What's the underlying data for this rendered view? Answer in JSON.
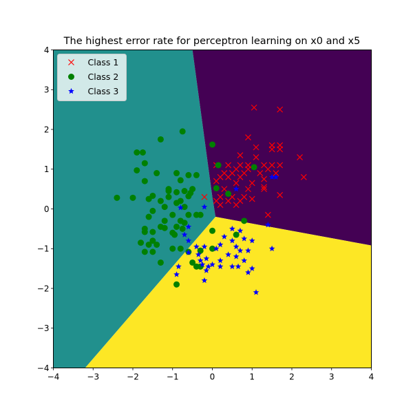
{
  "chart_data": {
    "type": "scatter",
    "title": "The highest error rate for perceptron learning on x0 and x5",
    "xlabel": "",
    "ylabel": "",
    "xlim": [
      -4,
      4
    ],
    "ylim": [
      -4,
      4
    ],
    "xticks": [
      "−4",
      "−3",
      "−2",
      "−1",
      "0",
      "1",
      "2",
      "3",
      "4"
    ],
    "yticks": [
      "−4",
      "−3",
      "−2",
      "−1",
      "0",
      "1",
      "2",
      "3",
      "4"
    ],
    "grid": false,
    "legend_position": "top-left",
    "decision_regions": [
      {
        "color": "#21908d",
        "polygon": [
          [
            -4,
            4
          ],
          [
            -0.5,
            4
          ],
          [
            0,
            0.3
          ],
          [
            0.08,
            -0.2
          ],
          [
            -3.2,
            -4
          ],
          [
            -4,
            -4
          ]
        ]
      },
      {
        "color": "#440154",
        "polygon": [
          [
            -0.5,
            4
          ],
          [
            4,
            4
          ],
          [
            4,
            -0.92
          ],
          [
            0.08,
            -0.2
          ],
          [
            0,
            0.3
          ]
        ]
      },
      {
        "color": "#fde725",
        "polygon": [
          [
            0.08,
            -0.2
          ],
          [
            4,
            -0.92
          ],
          [
            4,
            -4
          ],
          [
            -3.2,
            -4
          ]
        ]
      }
    ],
    "series": [
      {
        "name": "Class 1",
        "marker": "x",
        "color": "#ff0000",
        "points": [
          [
            1.05,
            2.55
          ],
          [
            1.7,
            2.5
          ],
          [
            0.9,
            1.8
          ],
          [
            1.5,
            1.6
          ],
          [
            1.7,
            1.6
          ],
          [
            1.1,
            1.55
          ],
          [
            1.5,
            1.5
          ],
          [
            1.7,
            1.5
          ],
          [
            0.7,
            1.35
          ],
          [
            2.2,
            1.3
          ],
          [
            1.1,
            1.3
          ],
          [
            0.1,
            1.1
          ],
          [
            0.4,
            1.1
          ],
          [
            0.7,
            1.1
          ],
          [
            0.9,
            1.1
          ],
          [
            1.3,
            1.1
          ],
          [
            1.5,
            1.1
          ],
          [
            1.7,
            1.1
          ],
          [
            0.6,
            1.0
          ],
          [
            0.9,
            1.0
          ],
          [
            1.4,
            1.0
          ],
          [
            0.3,
            0.9
          ],
          [
            0.5,
            0.9
          ],
          [
            0.8,
            0.9
          ],
          [
            1.2,
            0.9
          ],
          [
            1.6,
            0.9
          ],
          [
            2.3,
            0.8
          ],
          [
            0.2,
            0.8
          ],
          [
            0.4,
            0.8
          ],
          [
            0.7,
            0.8
          ],
          [
            1.3,
            0.75
          ],
          [
            0.1,
            0.7
          ],
          [
            0.6,
            0.65
          ],
          [
            1.0,
            0.65
          ],
          [
            1.3,
            0.55
          ],
          [
            0.3,
            0.5
          ],
          [
            0.9,
            0.5
          ],
          [
            1.3,
            0.5
          ],
          [
            1.7,
            0.35
          ],
          [
            0.2,
            0.3
          ],
          [
            0.5,
            0.3
          ],
          [
            0.8,
            0.3
          ],
          [
            1.0,
            0.25
          ],
          [
            -0.2,
            0.3
          ],
          [
            0.1,
            0.2
          ],
          [
            0.4,
            0.2
          ],
          [
            0.7,
            0.2
          ],
          [
            0.2,
            0.1
          ],
          [
            0.6,
            0.1
          ],
          [
            1.4,
            -0.15
          ]
        ]
      },
      {
        "name": "Class 2",
        "marker": "o",
        "color": "#008000",
        "points": [
          [
            -0.75,
            1.95
          ],
          [
            -1.3,
            1.75
          ],
          [
            0,
            1.62
          ],
          [
            -1.9,
            1.42
          ],
          [
            -1.75,
            1.42
          ],
          [
            -1.7,
            1.15
          ],
          [
            0.15,
            1.1
          ],
          [
            1.05,
            1.05
          ],
          [
            -1.9,
            0.97
          ],
          [
            -1.4,
            0.9
          ],
          [
            -0.9,
            0.9
          ],
          [
            -0.6,
            0.85
          ],
          [
            -0.4,
            0.85
          ],
          [
            -1.7,
            0.7
          ],
          [
            -0.8,
            0.72
          ],
          [
            -1.1,
            0.5
          ],
          [
            -0.5,
            0.5
          ],
          [
            0.1,
            0.52
          ],
          [
            -1.1,
            0.45
          ],
          [
            -0.7,
            0.45
          ],
          [
            -0.9,
            0.42
          ],
          [
            -0.55,
            0.4
          ],
          [
            -1.5,
            0.33
          ],
          [
            -1.1,
            0.3
          ],
          [
            -0.6,
            0.32
          ],
          [
            0.4,
            0.38
          ],
          [
            -2.4,
            0.28
          ],
          [
            -2.0,
            0.28
          ],
          [
            -1.6,
            0.25
          ],
          [
            -1.3,
            0.2
          ],
          [
            -0.8,
            0.2
          ],
          [
            -0.9,
            0.15
          ],
          [
            -1.2,
            0.05
          ],
          [
            -0.7,
            0.05
          ],
          [
            -1.5,
            -0.05
          ],
          [
            -1.0,
            -0.15
          ],
          [
            -0.4,
            -0.15
          ],
          [
            -0.3,
            -0.15
          ],
          [
            -0.6,
            -0.15
          ],
          [
            -1.6,
            -0.2
          ],
          [
            -1.2,
            -0.3
          ],
          [
            -0.8,
            -0.3
          ],
          [
            -0.7,
            -0.35
          ],
          [
            0.8,
            -0.3
          ],
          [
            -1.7,
            -0.5
          ],
          [
            -1.3,
            -0.45
          ],
          [
            -1.2,
            -0.48
          ],
          [
            -0.9,
            -0.45
          ],
          [
            -0.75,
            -0.5
          ],
          [
            -1.7,
            -0.58
          ],
          [
            -1.5,
            -0.58
          ],
          [
            -1.0,
            -0.6
          ],
          [
            0,
            -0.55
          ],
          [
            -0.95,
            -0.65
          ],
          [
            0.6,
            -0.65
          ],
          [
            -1.5,
            -0.8
          ],
          [
            -1.8,
            -0.85
          ],
          [
            -1.6,
            -0.9
          ],
          [
            -1.4,
            -0.9
          ],
          [
            -1.0,
            -1.0
          ],
          [
            -0.8,
            -1.0
          ],
          [
            0,
            -1.0
          ],
          [
            -1.7,
            -1.08
          ],
          [
            -1.5,
            -1.08
          ],
          [
            -0.6,
            -1.08
          ],
          [
            -0.3,
            -1.05
          ],
          [
            -1.3,
            -1.35
          ],
          [
            -0.5,
            -1.35
          ],
          [
            -0.3,
            -1.45
          ],
          [
            -0.4,
            -1.45
          ],
          [
            -0.9,
            -1.9
          ]
        ]
      },
      {
        "name": "Class 3",
        "marker": "*",
        "color": "#0000ff",
        "points": [
          [
            -0.8,
            0.03
          ],
          [
            -0.2,
            0.05
          ],
          [
            0.6,
            0.5
          ],
          [
            1.5,
            0.8
          ],
          [
            1.6,
            0.8
          ],
          [
            1.4,
            -0.4
          ],
          [
            -0.6,
            -0.45
          ],
          [
            -0.7,
            -0.65
          ],
          [
            -0.6,
            -0.8
          ],
          [
            0.5,
            -0.5
          ],
          [
            0.7,
            -0.55
          ],
          [
            0.3,
            -0.7
          ],
          [
            0.8,
            -0.75
          ],
          [
            0.5,
            -0.8
          ],
          [
            1.0,
            -0.8
          ],
          [
            0.2,
            -0.9
          ],
          [
            0.6,
            -0.95
          ],
          [
            -0.4,
            -0.95
          ],
          [
            -0.2,
            -0.95
          ],
          [
            1.5,
            -1.0
          ],
          [
            -0.6,
            -1.1
          ],
          [
            0.1,
            -1.0
          ],
          [
            0.7,
            -1.05
          ],
          [
            0.9,
            -1.05
          ],
          [
            -0.35,
            -1.15
          ],
          [
            0.4,
            -1.15
          ],
          [
            -0.15,
            -1.25
          ],
          [
            0.2,
            -1.3
          ],
          [
            -0.3,
            -1.3
          ],
          [
            0.8,
            -1.3
          ],
          [
            0.6,
            -1.2
          ],
          [
            -0.25,
            -1.4
          ],
          [
            0,
            -1.4
          ],
          [
            -0.1,
            -1.45
          ],
          [
            0.5,
            -1.45
          ],
          [
            0.65,
            -1.45
          ],
          [
            -0.85,
            -1.45
          ],
          [
            0.2,
            -1.45
          ],
          [
            1.0,
            -1.5
          ],
          [
            -0.15,
            -1.55
          ],
          [
            0.9,
            -1.6
          ],
          [
            -0.9,
            -1.65
          ],
          [
            -0.2,
            -1.8
          ],
          [
            1.1,
            -2.1
          ]
        ]
      }
    ]
  }
}
